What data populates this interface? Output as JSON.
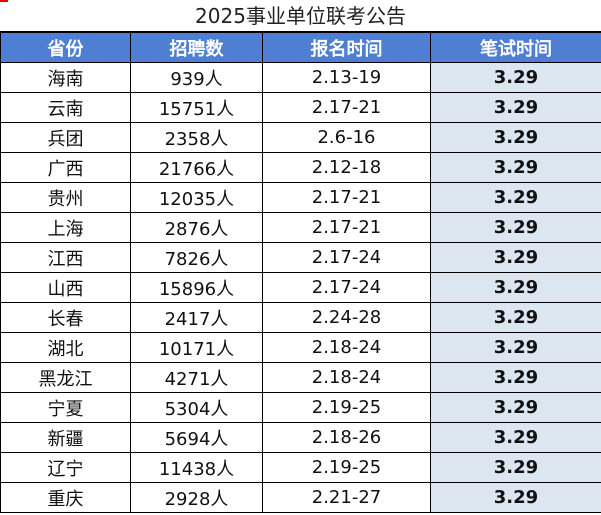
{
  "title": "2025事业单位联考公告",
  "table": {
    "header": [
      "省份",
      "招聘数",
      "报名时间",
      "笔试时间"
    ],
    "rows": [
      [
        "海南",
        "939人",
        "2.13-19",
        "3.29"
      ],
      [
        "云南",
        "15751人",
        "2.17-21",
        "3.29"
      ],
      [
        "兵团",
        "2358人",
        "2.6-16",
        "3.29"
      ],
      [
        "广西",
        "21766人",
        "2.12-18",
        "3.29"
      ],
      [
        "贵州",
        "12035人",
        "2.17-21",
        "3.29"
      ],
      [
        "上海",
        "2876人",
        "2.17-21",
        "3.29"
      ],
      [
        "江西",
        "7826人",
        "2.17-24",
        "3.29"
      ],
      [
        "山西",
        "15896人",
        "2.17-24",
        "3.29"
      ],
      [
        "长春",
        "2417人",
        "2.24-28",
        "3.29"
      ],
      [
        "湖北",
        "10171人",
        "2.18-24",
        "3.29"
      ],
      [
        "黑龙江",
        "4271人",
        "2.18-24",
        "3.29"
      ],
      [
        "宁夏",
        "5304人",
        "2.19-25",
        "3.29"
      ],
      [
        "新疆",
        "5694人",
        "2.18-26",
        "3.29"
      ],
      [
        "辽宁",
        "11438人",
        "2.19-25",
        "3.29"
      ],
      [
        "重庆",
        "2928人",
        "2.21-27",
        "3.29"
      ]
    ]
  }
}
